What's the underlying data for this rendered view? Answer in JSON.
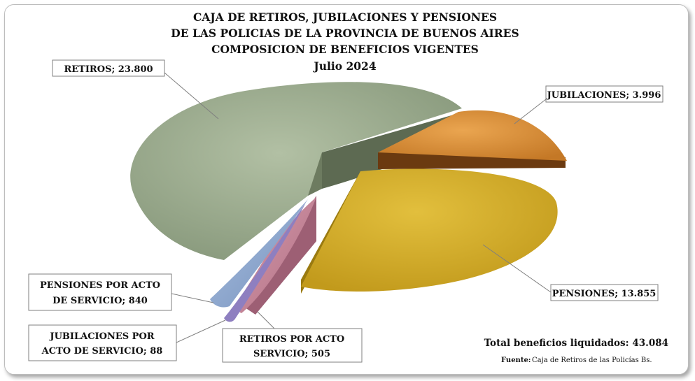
{
  "chart_data": {
    "type": "pie",
    "title_lines": [
      "CAJA DE RETIROS, JUBILACIONES Y PENSIONES",
      "DE LAS POLICIAS DE LA PROVINCIA DE BUENOS AIRES",
      "COMPOSICION DE BENEFICIOS VIGENTES",
      "Julio 2024"
    ],
    "slices": [
      {
        "label_lines": [
          "RETIROS; 23.800"
        ],
        "value": 23800,
        "color": "#98a98a"
      },
      {
        "label_lines": [
          "JUBILACIONES; 3.996"
        ],
        "value": 3996,
        "color": "#d98b35"
      },
      {
        "label_lines": [
          "PENSIONES; 13.855"
        ],
        "value": 13855,
        "color": "#d4ac2a"
      },
      {
        "label_lines": [
          "RETIROS POR ACTO",
          "SERVICIO; 505"
        ],
        "value": 505,
        "color": "#c78397"
      },
      {
        "label_lines": [
          "JUBILACIONES POR",
          "ACTO DE SERVICIO;  88"
        ],
        "value": 88,
        "color": "#8e7fc0"
      },
      {
        "label_lines": [
          "PENSIONES POR ACTO",
          "DE SERVICIO;  840"
        ],
        "value": 840,
        "color": "#8ea7cc"
      }
    ],
    "total_label": "Total beneficios liquidados: 43.084",
    "source_label": "Fuente:",
    "source_text": "Caja de Retiros de las Policías  Bs."
  }
}
